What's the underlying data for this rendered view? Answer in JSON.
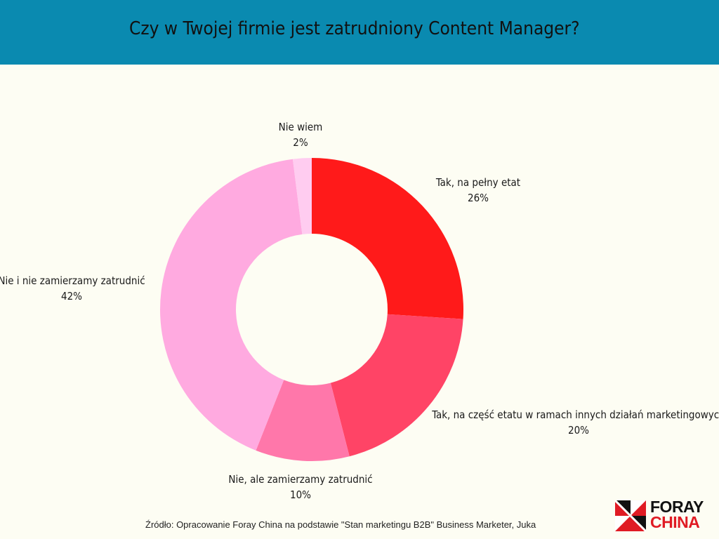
{
  "header": {
    "title": "Czy w Twojej firmie jest zatrudniony Content Manager?",
    "background": "#0a8ab0"
  },
  "chart_data": {
    "type": "pie",
    "variant": "donut",
    "title": "Czy w Twojej firmie jest zatrudniony Content Manager?",
    "unit": "%",
    "slices": [
      {
        "label": "Tak, na pełny etat",
        "value": 26,
        "value_label": "26%",
        "color": "#ff1a1a"
      },
      {
        "label": "Tak, na część etatu w ramach innych działań marketingowych",
        "value": 20,
        "value_label": "20%",
        "color": "#ff4466"
      },
      {
        "label": "Nie, ale zamierzamy zatrudnić",
        "value": 10,
        "value_label": "10%",
        "color": "#ff77aa"
      },
      {
        "label": "Nie i nie zamierzamy zatrudnić",
        "value": 42,
        "value_label": "42%",
        "color": "#ffaae0"
      },
      {
        "label": "Nie wiem",
        "value": 2,
        "value_label": "2%",
        "color": "#ffccf0"
      }
    ],
    "legend": "none"
  },
  "footer": {
    "source": "Źródło: Opracowanie Foray China na podstawie \"Stan marketingu B2B\" Business Marketer, Juka"
  },
  "logo": {
    "line1": "FORAY",
    "line2": "CHINA",
    "icon": "foray-china-logo-icon"
  }
}
